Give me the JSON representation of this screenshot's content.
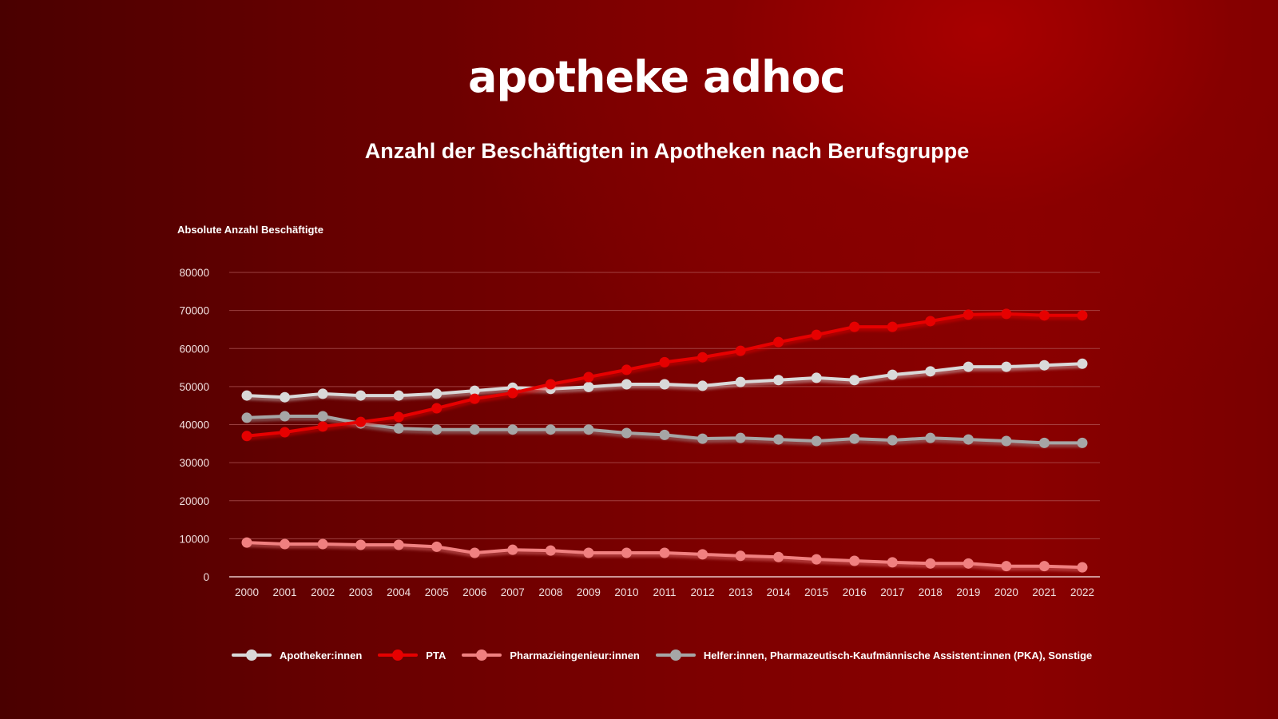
{
  "brand": {
    "logo_text": "apotheke adhoc"
  },
  "chart_data": {
    "type": "line",
    "title": "Anzahl der Beschäftigten in Apotheken nach Berufsgruppe",
    "xlabel": "",
    "ylabel": "Absolute Anzahl Beschäftigte",
    "ylim": [
      0,
      80000
    ],
    "yticks": [
      "0",
      "10000",
      "20000",
      "30000",
      "40000",
      "50000",
      "60000",
      "70000",
      "80000"
    ],
    "ytick_values": [
      0,
      10000,
      20000,
      30000,
      40000,
      50000,
      60000,
      70000,
      80000
    ],
    "grid": true,
    "legend_position": "bottom",
    "categories": [
      "2000",
      "2001",
      "2002",
      "2003",
      "2004",
      "2005",
      "2006",
      "2007",
      "2008",
      "2009",
      "2010",
      "2011",
      "2012",
      "2013",
      "2014",
      "2015",
      "2016",
      "2017",
      "2018",
      "2019",
      "2020",
      "2021",
      "2022"
    ],
    "series": [
      {
        "name": "Apotheker:innen",
        "color": "#d9d9d9",
        "values": [
          47650,
          47200,
          48100,
          47650,
          47650,
          48100,
          48900,
          49700,
          49400,
          49900,
          50600,
          50600,
          50200,
          51200,
          51700,
          52300,
          51700,
          53100,
          54000,
          55200,
          55200,
          55600,
          56000
        ]
      },
      {
        "name": "PTA",
        "color": "#e60000",
        "values": [
          37000,
          38000,
          39500,
          40700,
          42000,
          44300,
          46800,
          48300,
          50600,
          52500,
          54400,
          56400,
          57700,
          59400,
          61700,
          63600,
          65700,
          65700,
          67200,
          68900,
          69100,
          68700,
          68700
        ]
      },
      {
        "name": "Pharmazieingenieur:innen",
        "color": "#f08080",
        "values": [
          9000,
          8600,
          8600,
          8400,
          8400,
          7900,
          6300,
          7100,
          6900,
          6300,
          6300,
          6300,
          5900,
          5500,
          5200,
          4600,
          4200,
          3800,
          3500,
          3500,
          2800,
          2800,
          2500
        ]
      },
      {
        "name": "Helfer:innen, Pharmazeutisch-Kaufmännische Assistent:innen (PKA), Sonstige",
        "color": "#a6a6a6",
        "values": [
          41800,
          42200,
          42200,
          40300,
          39000,
          38700,
          38700,
          38700,
          38700,
          38700,
          37800,
          37300,
          36300,
          36500,
          36100,
          35700,
          36300,
          35900,
          36500,
          36100,
          35700,
          35200,
          35200
        ]
      }
    ]
  },
  "colors": {
    "background_dark": "#4a0000",
    "background_bright": "#a80000",
    "gridline": "#b35a5a",
    "axis": "#e8c8c8"
  }
}
